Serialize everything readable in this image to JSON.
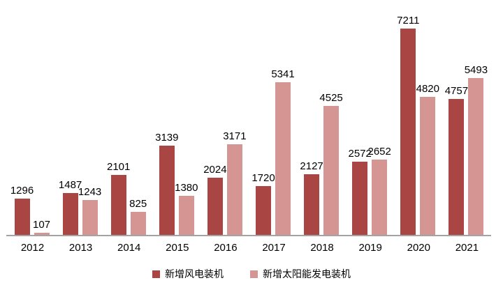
{
  "chart_data": {
    "type": "bar",
    "title": "",
    "xlabel": "",
    "ylabel": "",
    "categories": [
      "2012",
      "2013",
      "2014",
      "2015",
      "2016",
      "2017",
      "2018",
      "2019",
      "2020",
      "2021"
    ],
    "series": [
      {
        "name": "新增风电装机",
        "color": "#A94643",
        "values": [
          1296,
          1487,
          2101,
          3139,
          2024,
          1720,
          2127,
          2572,
          7211,
          4757
        ]
      },
      {
        "name": "新增太阳能发电装机",
        "color": "#D59693",
        "values": [
          107,
          1243,
          825,
          1380,
          3171,
          5341,
          4525,
          2652,
          4820,
          5493
        ]
      }
    ],
    "ylim": [
      0,
      7600
    ],
    "grid": false,
    "y_axis_visible": false,
    "value_labels": true,
    "legend_position": "bottom"
  },
  "colors": {
    "background": "#FFFFFF",
    "axis_line": "#A3A3A3",
    "label_text": "#000000"
  }
}
